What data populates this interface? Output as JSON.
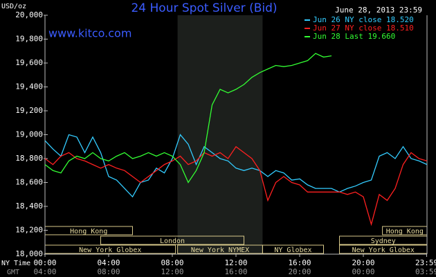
{
  "chart_data": {
    "type": "line",
    "title": "24 Hour Spot Silver (Bid)",
    "y_label": "USD/oz",
    "date": "June 28, 2013 23:59",
    "watermark": "www.kitco.com",
    "x_row_labels": [
      "NY Time",
      "GMT"
    ],
    "x": [
      0,
      0.5,
      1,
      1.5,
      2,
      2.5,
      3,
      3.5,
      4,
      4.5,
      5,
      5.5,
      6,
      6.5,
      7,
      7.5,
      8,
      8.5,
      9,
      9.5,
      10,
      10.5,
      11,
      11.5,
      12,
      12.5,
      13,
      13.5,
      14,
      14.5,
      15,
      15.5,
      16,
      16.5,
      17,
      17.5,
      18,
      18.5,
      19,
      19.5,
      20,
      20.5,
      21,
      21.5,
      22,
      22.5,
      23,
      23.5,
      24
    ],
    "xlim": [
      0,
      24
    ],
    "xticks": [
      {
        "value": 0,
        "label": "00:00"
      },
      {
        "value": 4,
        "label": "04:00"
      },
      {
        "value": 8,
        "label": "08:00"
      },
      {
        "value": 12,
        "label": "12:00"
      },
      {
        "value": 16,
        "label": "16:00"
      },
      {
        "value": 20,
        "label": "20:00"
      },
      {
        "value": 23.98,
        "label": "23:59"
      }
    ],
    "gmt_tick_labels": [
      "04:00",
      "08:00",
      "12:00",
      "16:00",
      "20:00",
      "00:00",
      "03:59"
    ],
    "ylim": [
      18,
      20
    ],
    "yticks": [
      {
        "value": 18,
        "label": "18,000"
      },
      {
        "value": 18.2,
        "label": "18,200"
      },
      {
        "value": 18.4,
        "label": "18,400"
      },
      {
        "value": 18.6,
        "label": "18,600"
      },
      {
        "value": 18.8,
        "label": "18,800"
      },
      {
        "value": 19,
        "label": "19,000"
      },
      {
        "value": 19.2,
        "label": "19,200"
      },
      {
        "value": 19.4,
        "label": "19,400"
      },
      {
        "value": 19.6,
        "label": "19,600"
      },
      {
        "value": 19.8,
        "label": "19,800"
      },
      {
        "value": 20,
        "label": "20,000"
      }
    ],
    "grid": false,
    "legend": "top-right",
    "series": [
      {
        "name": "Jun 26 NY close 18.520",
        "color": "#33ccff",
        "values": [
          18.95,
          18.88,
          18.82,
          19.0,
          18.98,
          18.85,
          18.98,
          18.85,
          18.65,
          18.62,
          18.55,
          18.48,
          18.6,
          18.62,
          18.72,
          18.68,
          18.8,
          19.0,
          18.92,
          18.75,
          18.9,
          18.85,
          18.8,
          18.78,
          18.72,
          18.7,
          18.72,
          18.7,
          18.65,
          18.7,
          18.68,
          18.62,
          18.63,
          18.58,
          18.55,
          18.55,
          18.55,
          18.52,
          18.55,
          18.57,
          18.6,
          18.62,
          18.82,
          18.85,
          18.8,
          18.9,
          18.8,
          18.78,
          18.75
        ]
      },
      {
        "name": "Jun 27 NY close 18.510",
        "color": "#ff2020",
        "values": [
          18.8,
          18.75,
          18.82,
          18.85,
          18.8,
          18.78,
          18.75,
          18.72,
          18.75,
          18.72,
          18.7,
          18.65,
          18.6,
          18.65,
          18.7,
          18.75,
          18.78,
          18.82,
          18.75,
          18.78,
          18.85,
          18.82,
          18.85,
          18.8,
          18.9,
          18.85,
          18.8,
          18.7,
          18.45,
          18.6,
          18.65,
          18.6,
          18.58,
          18.52,
          18.52,
          18.52,
          18.52,
          18.52,
          18.5,
          18.52,
          18.48,
          18.25,
          18.5,
          18.45,
          18.55,
          18.75,
          18.85,
          18.8,
          18.78
        ]
      },
      {
        "name": "Jun 28 Last 19.660",
        "color": "#33ff33",
        "values": [
          18.75,
          18.7,
          18.68,
          18.78,
          18.82,
          18.8,
          18.85,
          18.8,
          18.78,
          18.82,
          18.85,
          18.8,
          18.82,
          18.85,
          18.82,
          18.85,
          18.82,
          18.75,
          18.6,
          18.7,
          18.85,
          19.25,
          19.38,
          19.35,
          19.38,
          19.42,
          19.48,
          19.52,
          19.55,
          19.58,
          19.57,
          19.58,
          19.6,
          19.62,
          19.68,
          19.65,
          19.66,
          null,
          null,
          null,
          null,
          null,
          null,
          null,
          null,
          null,
          null,
          null,
          null
        ]
      }
    ],
    "sessions": [
      {
        "name": "Hong Kong",
        "row": 0,
        "start": 0,
        "end": 5.5
      },
      {
        "name": "Hong Kong",
        "row": 0,
        "start": 21.2,
        "end": 24
      },
      {
        "name": "London",
        "row": 1,
        "start": 3.5,
        "end": 12.5
      },
      {
        "name": "Sydney",
        "row": 1,
        "start": 18.5,
        "end": 24
      },
      {
        "name": "New York Globex",
        "row": 2,
        "start": 0,
        "end": 8.2
      },
      {
        "name": "New York NYMEX",
        "row": 2,
        "start": 8.33,
        "end": 13.67,
        "shade": true
      },
      {
        "name": "NY Globex",
        "row": 2,
        "start": 13.67,
        "end": 17.5
      },
      {
        "name": "New York Globex",
        "row": 2,
        "start": 18.5,
        "end": 24
      }
    ]
  }
}
